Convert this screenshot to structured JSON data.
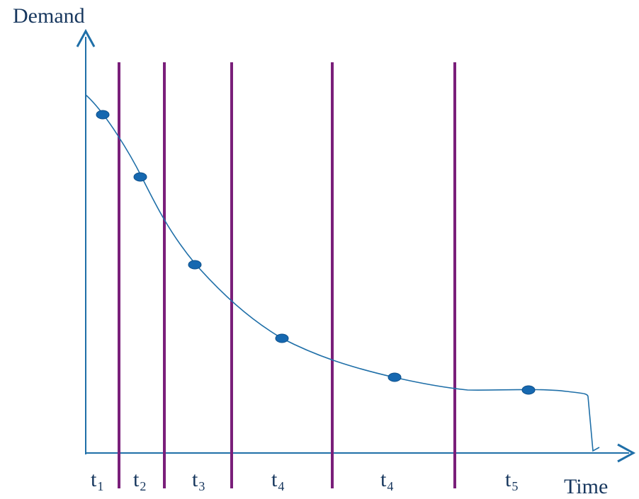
{
  "axes": {
    "y_label": "Demand",
    "x_label": "Time"
  },
  "periods": [
    {
      "base": "t",
      "sub": "1"
    },
    {
      "base": "t",
      "sub": "2"
    },
    {
      "base": "t",
      "sub": "3"
    },
    {
      "base": "t",
      "sub": "4"
    },
    {
      "base": "t",
      "sub": "4"
    },
    {
      "base": "t",
      "sub": "5"
    }
  ],
  "colors": {
    "axis": "#1f6fa8",
    "curve": "#1f6fa8",
    "dividers": "#7a1f7a",
    "points": "#1668b0",
    "text": "#17375e"
  }
}
